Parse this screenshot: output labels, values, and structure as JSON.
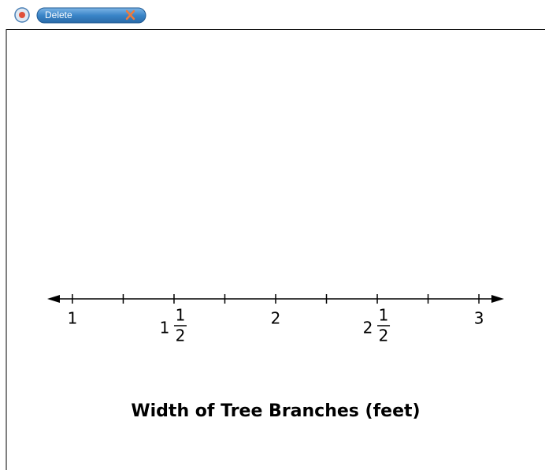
{
  "toolbar": {
    "button": "Delete"
  },
  "number_line": {
    "title": "Width of Tree Branches (feet)",
    "xlim": [
      0.884,
      3.116
    ],
    "xticks": [
      1,
      {
        "value": 1.5,
        "whole": "1",
        "num": "1",
        "den": "2"
      },
      2,
      {
        "value": 2.5,
        "whole": "2",
        "num": "1",
        "den": "2"
      },
      3
    ],
    "minor_ticks": [
      1.25,
      1.75,
      2.25,
      2.75
    ]
  }
}
